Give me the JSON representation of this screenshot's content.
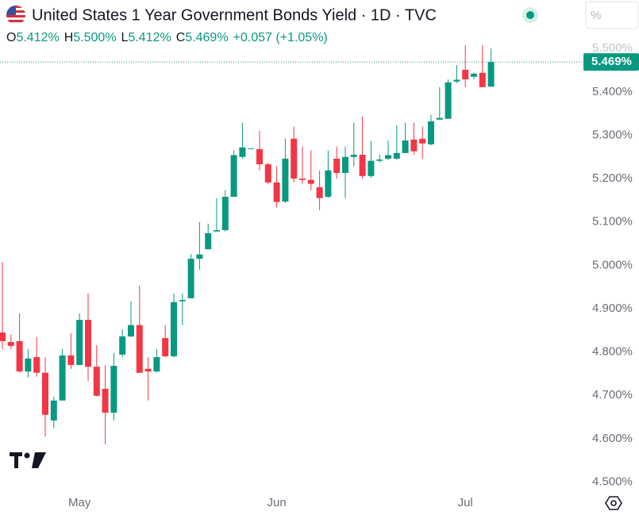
{
  "chart_data": {
    "type": "candlestick",
    "title": "United States 1 Year Government Bonds Yield · 1D · TVC",
    "ohlc_legend": [
      {
        "key": "O",
        "value": "5.412%"
      },
      {
        "key": "H",
        "value": "5.500%"
      },
      {
        "key": "L",
        "value": "5.412%"
      },
      {
        "key": "C",
        "value": "5.469%"
      }
    ],
    "change": "+0.057 (+1.05%)",
    "unit_field": "%",
    "categories": [
      null,
      null,
      null,
      null,
      null,
      null,
      null,
      null,
      null,
      "May",
      null,
      null,
      null,
      null,
      null,
      null,
      null,
      null,
      null,
      null,
      null,
      null,
      null,
      null,
      null,
      null,
      null,
      null,
      null,
      null,
      null,
      null,
      "Jun",
      null,
      null,
      null,
      null,
      null,
      null,
      null,
      null,
      null,
      null,
      null,
      null,
      null,
      null,
      null,
      null,
      null,
      null,
      null,
      null,
      null,
      "Jul",
      null,
      null,
      null
    ],
    "open": [
      4.845,
      4.823,
      4.825,
      4.755,
      4.788,
      4.752,
      4.642,
      4.688,
      4.792,
      4.77,
      4.874,
      4.766,
      4.715,
      4.66,
      4.794,
      4.836,
      4.862,
      4.761,
      4.755,
      4.832,
      4.79,
      4.917,
      4.924,
      5.015,
      5.037,
      5.078,
      5.081,
      5.158,
      5.25,
      5.27,
      5.268,
      5.233,
      5.191,
      5.147,
      5.292,
      5.2,
      5.197,
      5.18,
      5.158,
      5.246,
      5.213,
      5.25,
      5.255,
      5.206,
      5.241,
      5.246,
      5.246,
      5.259,
      5.29,
      5.292,
      5.279,
      5.336,
      5.338,
      5.424,
      5.451,
      5.435,
      5.444,
      5.412
    ],
    "high": [
      5.008,
      4.84,
      4.889,
      4.807,
      4.834,
      4.788,
      4.697,
      4.807,
      4.843,
      4.889,
      4.935,
      4.816,
      4.77,
      4.798,
      4.852,
      4.917,
      4.953,
      4.788,
      4.807,
      4.862,
      4.935,
      4.935,
      5.026,
      5.1,
      5.096,
      5.155,
      5.173,
      5.265,
      5.329,
      5.27,
      5.31,
      5.237,
      5.228,
      5.292,
      5.32,
      5.274,
      5.265,
      5.219,
      5.265,
      5.274,
      5.274,
      5.329,
      5.343,
      5.287,
      5.255,
      5.287,
      5.323,
      5.329,
      5.329,
      5.32,
      5.347,
      5.411,
      5.429,
      5.462,
      5.508,
      5.444,
      5.508,
      5.5
    ],
    "low": [
      4.807,
      4.807,
      4.752,
      4.741,
      4.743,
      4.605,
      4.624,
      4.688,
      4.761,
      4.77,
      4.733,
      4.697,
      4.587,
      4.642,
      4.788,
      4.834,
      4.752,
      4.688,
      4.752,
      4.788,
      4.788,
      4.862,
      4.924,
      4.99,
      5.037,
      5.078,
      5.078,
      5.158,
      5.246,
      5.27,
      5.219,
      5.188,
      5.133,
      5.144,
      5.191,
      5.188,
      5.173,
      5.127,
      5.155,
      5.2,
      5.155,
      5.228,
      5.2,
      5.202,
      5.237,
      5.243,
      5.243,
      5.259,
      5.255,
      5.246,
      5.277,
      5.336,
      5.338,
      5.42,
      5.411,
      5.429,
      5.411,
      5.412
    ],
    "close": [
      4.825,
      4.814,
      4.755,
      4.785,
      4.752,
      4.655,
      4.688,
      4.792,
      4.77,
      4.874,
      4.766,
      4.699,
      4.66,
      4.768,
      4.836,
      4.862,
      4.752,
      4.755,
      4.788,
      4.79,
      4.915,
      4.92,
      5.015,
      5.025,
      5.074,
      5.081,
      5.158,
      5.254,
      5.272,
      5.27,
      5.233,
      5.191,
      5.146,
      5.246,
      5.2,
      5.197,
      5.188,
      5.155,
      5.219,
      5.213,
      5.25,
      5.255,
      5.206,
      5.241,
      5.244,
      5.254,
      5.259,
      5.288,
      5.263,
      5.281,
      5.332,
      5.34,
      5.422,
      5.428,
      5.429,
      5.442,
      5.411,
      5.469
    ],
    "last_price_label": "5.469%",
    "up_color": "#089981",
    "down_color": "#f23645",
    "ylim": [
      4.477,
      5.612
    ],
    "yticks": [
      {
        "value": 4.5,
        "label": "4.500%"
      },
      {
        "value": 4.6,
        "label": "4.600%"
      },
      {
        "value": 4.7,
        "label": "4.700%"
      },
      {
        "value": 4.8,
        "label": "4.800%"
      },
      {
        "value": 4.9,
        "label": "4.900%"
      },
      {
        "value": 5.0,
        "label": "5.000%"
      },
      {
        "value": 5.1,
        "label": "5.100%"
      },
      {
        "value": 5.2,
        "label": "5.200%"
      },
      {
        "value": 5.3,
        "label": "5.300%"
      },
      {
        "value": 5.4,
        "label": "5.400%"
      },
      {
        "value": 5.5,
        "label": "5.500%"
      }
    ],
    "grid": false
  }
}
